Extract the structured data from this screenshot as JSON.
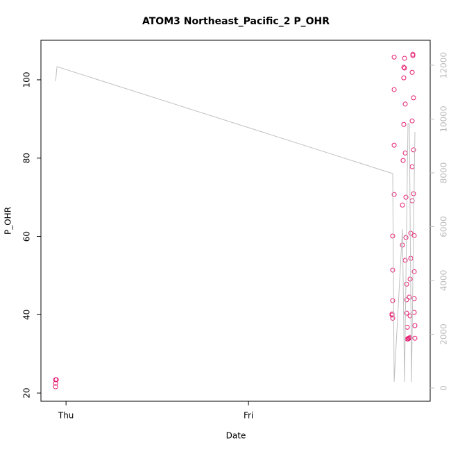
{
  "chart_data": {
    "type": "scatter",
    "title": "ATOM3 Northeast_Pacific_2 P_OHR",
    "xlabel": "Date",
    "ylabel": "P_OHR",
    "xlim": [
      -3.3,
      47.9
    ],
    "xticks": [
      {
        "value": 0,
        "label": "Thu"
      },
      {
        "value": 24,
        "label": "Fri"
      }
    ],
    "ylim": [
      17.9,
      110.1
    ],
    "yticks": [
      20,
      40,
      60,
      80,
      100
    ],
    "y2lim": [
      -490,
      12929
    ],
    "y2ticks": [
      0,
      2000,
      4000,
      6000,
      8000,
      10000,
      12000
    ],
    "grid": false,
    "series": [
      {
        "color": "#e6196e",
        "x": [
          -1.37,
          -1.37,
          -1.37,
          -1.28,
          43.16,
          43.16,
          43.16,
          43.16,
          42.97,
          42.97,
          42.97,
          42.88,
          42.88,
          42.97,
          44.53,
          44.53,
          44.43,
          44.43,
          44.62,
          44.43,
          44.62,
          44.34,
          44.71,
          44.25,
          44.25,
          44.71,
          44.62,
          44.8,
          44.8,
          44.8,
          44.89,
          44.89,
          44.98,
          45.07,
          45.16,
          45.26,
          45.62,
          45.62,
          45.53,
          45.71,
          45.53,
          45.71,
          45.53,
          45.71,
          45.53,
          45.35,
          45.8,
          45.35,
          45.8,
          45.26,
          45.16,
          45.8,
          45.8,
          45.26,
          45.89,
          45.89
        ],
        "values": [
          23.4,
          22.5,
          21.6,
          23.4,
          105.8,
          97.5,
          83.3,
          70.7,
          60.1,
          51.4,
          43.6,
          40.2,
          39.9,
          39.1,
          103.0,
          105.5,
          100.5,
          103.2,
          93.8,
          88.6,
          81.3,
          79.4,
          70.0,
          68.0,
          57.8,
          59.7,
          53.9,
          47.8,
          43.8,
          40.4,
          36.8,
          33.8,
          33.8,
          34.0,
          34.0,
          34.2,
          106.5,
          106.2,
          101.9,
          95.4,
          89.5,
          82.1,
          77.8,
          70.9,
          69.1,
          60.8,
          60.2,
          54.4,
          51.0,
          49.1,
          44.5,
          44.1,
          40.6,
          39.7,
          37.2,
          34.0
        ]
      },
      {
        "type": "line",
        "axis": "y2",
        "color": "#c0c0c0",
        "x": [
          -1.37,
          -1.19,
          42.97,
          43.16,
          44.25,
          44.53,
          44.98,
          45.16,
          45.44,
          45.89
        ],
        "values": [
          11406,
          11948,
          7974,
          232,
          5910,
          232,
          9832,
          9832,
          232,
          9523
        ]
      }
    ]
  }
}
